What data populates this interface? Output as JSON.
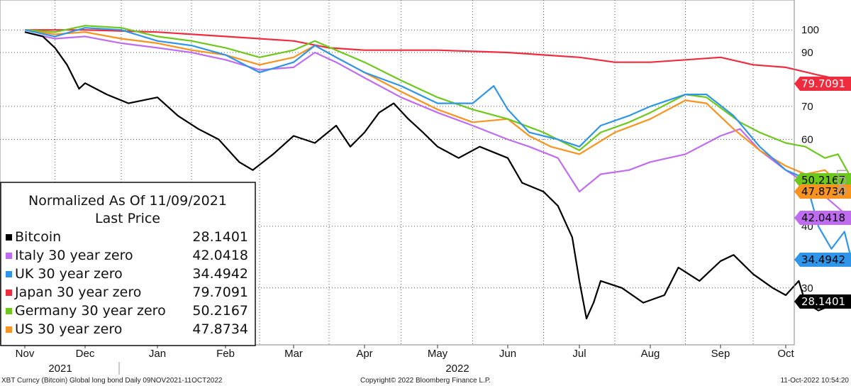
{
  "chart_data": {
    "type": "line",
    "scale": "log",
    "ylim": [
      23,
      115
    ],
    "y_ticks": [
      100,
      90,
      70,
      60,
      40,
      30
    ],
    "x_ticks": [
      "Nov",
      "Dec",
      "Jan",
      "Feb",
      "Mar",
      "Apr",
      "May",
      "Jun",
      "Jul",
      "Aug",
      "Sep",
      "Oct"
    ],
    "year_labels": [
      "2021",
      "2022"
    ],
    "legend_title": [
      "Normalized As Of 11/09/2021",
      "Last Price"
    ],
    "legend_placement": "bottom-left",
    "grid": true,
    "series": [
      {
        "name": "Bitcoin",
        "last": "28.1401",
        "color": "#000000",
        "tag_text": "#ffffff",
        "points": [
          [
            0,
            99
          ],
          [
            0.3,
            97
          ],
          [
            0.5,
            92
          ],
          [
            0.7,
            85
          ],
          [
            0.9,
            76
          ],
          [
            1,
            78
          ],
          [
            1.3,
            74
          ],
          [
            1.6,
            71
          ],
          [
            2,
            73
          ],
          [
            2.3,
            67
          ],
          [
            2.6,
            63
          ],
          [
            2.9,
            60
          ],
          [
            3.2,
            54
          ],
          [
            3.4,
            52
          ],
          [
            3.7,
            56
          ],
          [
            4,
            61
          ],
          [
            4.3,
            59
          ],
          [
            4.6,
            64
          ],
          [
            4.8,
            58
          ],
          [
            5,
            62
          ],
          [
            5.2,
            68
          ],
          [
            5.4,
            71
          ],
          [
            5.6,
            66
          ],
          [
            5.8,
            62
          ],
          [
            6,
            58
          ],
          [
            6.3,
            55
          ],
          [
            6.6,
            58
          ],
          [
            7,
            55
          ],
          [
            7.2,
            49
          ],
          [
            7.5,
            47
          ],
          [
            7.7,
            44
          ],
          [
            7.9,
            38
          ],
          [
            8,
            31
          ],
          [
            8.1,
            26
          ],
          [
            8.2,
            28
          ],
          [
            8.3,
            31
          ],
          [
            8.6,
            30
          ],
          [
            8.9,
            28
          ],
          [
            9.2,
            29
          ],
          [
            9.4,
            33
          ],
          [
            9.7,
            31
          ],
          [
            10,
            34
          ],
          [
            10.2,
            35
          ],
          [
            10.5,
            32
          ],
          [
            10.8,
            30
          ],
          [
            11,
            29
          ],
          [
            11.2,
            31
          ],
          [
            11.3,
            28
          ],
          [
            11.5,
            27
          ],
          [
            11.8,
            28
          ],
          [
            12,
            28.14
          ]
        ]
      },
      {
        "name": "Italy 30 year zero",
        "last": "42.0418",
        "color": "#bf6cf0",
        "tag_text": "#000000",
        "points": [
          [
            0,
            99
          ],
          [
            0.5,
            96
          ],
          [
            1,
            97
          ],
          [
            1.5,
            94
          ],
          [
            2,
            92
          ],
          [
            2.5,
            90
          ],
          [
            3,
            87
          ],
          [
            3.5,
            83
          ],
          [
            4,
            84
          ],
          [
            4.3,
            90
          ],
          [
            4.6,
            86
          ],
          [
            5,
            80
          ],
          [
            5.5,
            73
          ],
          [
            6,
            68
          ],
          [
            6.5,
            64
          ],
          [
            7,
            60
          ],
          [
            7.3,
            58
          ],
          [
            7.7,
            55
          ],
          [
            8,
            47
          ],
          [
            8.3,
            51
          ],
          [
            8.7,
            52
          ],
          [
            9,
            54
          ],
          [
            9.5,
            56
          ],
          [
            10,
            61
          ],
          [
            10.3,
            63
          ],
          [
            10.6,
            57
          ],
          [
            11,
            52
          ],
          [
            11.3,
            49
          ],
          [
            11.6,
            46
          ],
          [
            11.9,
            42.5
          ],
          [
            12,
            42.04
          ]
        ]
      },
      {
        "name": "UK 30 year zero",
        "last": "34.4942",
        "color": "#2e95e8",
        "tag_text": "#000000",
        "points": [
          [
            0,
            100
          ],
          [
            0.5,
            97
          ],
          [
            1,
            101
          ],
          [
            1.5,
            100
          ],
          [
            2,
            95
          ],
          [
            2.5,
            93
          ],
          [
            3,
            89
          ],
          [
            3.5,
            82
          ],
          [
            4,
            86
          ],
          [
            4.3,
            93
          ],
          [
            4.6,
            88
          ],
          [
            5,
            82
          ],
          [
            5.5,
            77
          ],
          [
            6,
            71
          ],
          [
            6.5,
            71
          ],
          [
            6.8,
            77
          ],
          [
            7,
            69
          ],
          [
            7.3,
            62
          ],
          [
            7.7,
            60
          ],
          [
            8,
            58
          ],
          [
            8.3,
            64
          ],
          [
            8.7,
            67
          ],
          [
            9,
            70
          ],
          [
            9.5,
            74
          ],
          [
            9.8,
            74
          ],
          [
            10.2,
            67
          ],
          [
            10.6,
            58
          ],
          [
            11,
            52
          ],
          [
            11.3,
            50
          ],
          [
            11.5,
            40
          ],
          [
            11.7,
            36
          ],
          [
            11.9,
            39
          ],
          [
            12,
            34.49
          ]
        ]
      },
      {
        "name": "Japan 30 year zero",
        "last": "79.7091",
        "color": "#ef2b3e",
        "tag_text": "#ffffff",
        "points": [
          [
            0,
            100
          ],
          [
            1,
            100
          ],
          [
            2,
            99
          ],
          [
            3,
            97
          ],
          [
            3.5,
            96
          ],
          [
            4,
            95
          ],
          [
            4.5,
            92
          ],
          [
            5,
            91
          ],
          [
            6,
            91
          ],
          [
            7,
            90
          ],
          [
            8,
            88
          ],
          [
            8.5,
            86
          ],
          [
            9,
            86
          ],
          [
            9.5,
            87
          ],
          [
            10,
            88
          ],
          [
            10.5,
            85
          ],
          [
            11,
            84
          ],
          [
            11.5,
            81
          ],
          [
            11.7,
            80
          ],
          [
            12,
            79.71
          ]
        ]
      },
      {
        "name": "Germany 30 year zero",
        "last": "50.2167",
        "color": "#6ec71c",
        "tag_text": "#000000",
        "points": [
          [
            0,
            100
          ],
          [
            0.5,
            99
          ],
          [
            1,
            102
          ],
          [
            1.5,
            101
          ],
          [
            2,
            97
          ],
          [
            2.5,
            95
          ],
          [
            3,
            92
          ],
          [
            3.5,
            88
          ],
          [
            4,
            91
          ],
          [
            4.3,
            95
          ],
          [
            4.6,
            91
          ],
          [
            5,
            86
          ],
          [
            5.5,
            79
          ],
          [
            6,
            73
          ],
          [
            6.5,
            69
          ],
          [
            7,
            66
          ],
          [
            7.5,
            62
          ],
          [
            8,
            57
          ],
          [
            8.3,
            62
          ],
          [
            8.7,
            65
          ],
          [
            9,
            68
          ],
          [
            9.5,
            74
          ],
          [
            9.8,
            73
          ],
          [
            10.3,
            65
          ],
          [
            10.6,
            62
          ],
          [
            11,
            59
          ],
          [
            11.3,
            58
          ],
          [
            11.6,
            55
          ],
          [
            11.8,
            56
          ],
          [
            12,
            50.22
          ]
        ]
      },
      {
        "name": "US 30 year zero",
        "last": "47.8734",
        "color": "#f7931e",
        "tag_text": "#000000",
        "points": [
          [
            0,
            100
          ],
          [
            0.5,
            98
          ],
          [
            1,
            99
          ],
          [
            1.5,
            96
          ],
          [
            2,
            94
          ],
          [
            2.5,
            91
          ],
          [
            3,
            89
          ],
          [
            3.5,
            85
          ],
          [
            4,
            88
          ],
          [
            4.3,
            93
          ],
          [
            4.6,
            88
          ],
          [
            5,
            82
          ],
          [
            5.5,
            75
          ],
          [
            6,
            69
          ],
          [
            6.5,
            65
          ],
          [
            7,
            66
          ],
          [
            7.3,
            61
          ],
          [
            7.6,
            58
          ],
          [
            8,
            56
          ],
          [
            8.5,
            62
          ],
          [
            9,
            66
          ],
          [
            9.5,
            72
          ],
          [
            9.8,
            71
          ],
          [
            10.2,
            63
          ],
          [
            10.6,
            57
          ],
          [
            11,
            53
          ],
          [
            11.3,
            51
          ],
          [
            11.6,
            52
          ],
          [
            11.8,
            49
          ],
          [
            12,
            47.87
          ]
        ]
      }
    ],
    "side_label": "LOG"
  },
  "footer": {
    "left": "XBT Curncy (Bitcoin) Global long bond  Daily 09NOV2021-11OCT2022",
    "center": "Copyright© 2022 Bloomberg Finance L.P.",
    "right": "11-Oct-2022 10:54:20"
  }
}
